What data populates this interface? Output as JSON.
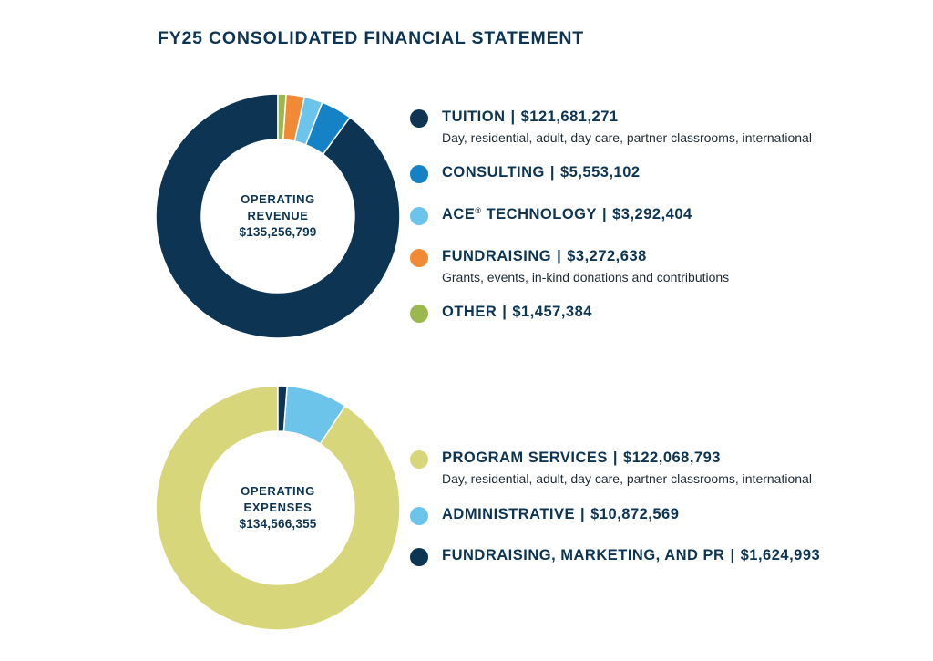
{
  "title": "FY25 CONSOLIDATED FINANCIAL STATEMENT",
  "chart_data": [
    {
      "type": "pie",
      "center_label": "OPERATING\nREVENUE",
      "center_label_lines": [
        "OPERATING",
        "REVENUE"
      ],
      "center_value": "$135,256,799",
      "total": 135256799,
      "series": [
        {
          "name": "TUITION",
          "amount_label": "$121,681,271",
          "value": 121681271,
          "color": "#0d3553",
          "description": "Day, residential, adult, day care, partner classrooms, international"
        },
        {
          "name": "CONSULTING",
          "amount_label": "$5,553,102",
          "value": 5553102,
          "color": "#1482c5",
          "description": ""
        },
        {
          "name": "ACE",
          "name_suffix": "®",
          "name_rest": " TECHNOLOGY",
          "amount_label": "$3,292,404",
          "value": 3292404,
          "color": "#6cc4ea",
          "description": ""
        },
        {
          "name": "FUNDRAISING",
          "amount_label": "$3,272,638",
          "value": 3272638,
          "color": "#f28a35",
          "description": "Grants, events, in-kind donations and contributions"
        },
        {
          "name": "OTHER",
          "amount_label": "$1,457,384",
          "value": 1457384,
          "color": "#9bb84f",
          "description": ""
        }
      ]
    },
    {
      "type": "pie",
      "center_label_lines": [
        "OPERATING",
        "EXPENSES"
      ],
      "center_value": "$134,566,355",
      "total": 134566355,
      "series": [
        {
          "name": "PROGRAM SERVICES",
          "amount_label": "$122,068,793",
          "value": 122068793,
          "color": "#d8d67a",
          "description": "Day, residential, adult, day care, partner classrooms, international"
        },
        {
          "name": "ADMINISTRATIVE",
          "amount_label": "$10,872,569",
          "value": 10872569,
          "color": "#6cc4ea",
          "description": ""
        },
        {
          "name": "FUNDRAISING, MARKETING, AND PR",
          "amount_label": "$1,624,993",
          "value": 1624993,
          "color": "#0d3553",
          "description": ""
        }
      ]
    }
  ]
}
